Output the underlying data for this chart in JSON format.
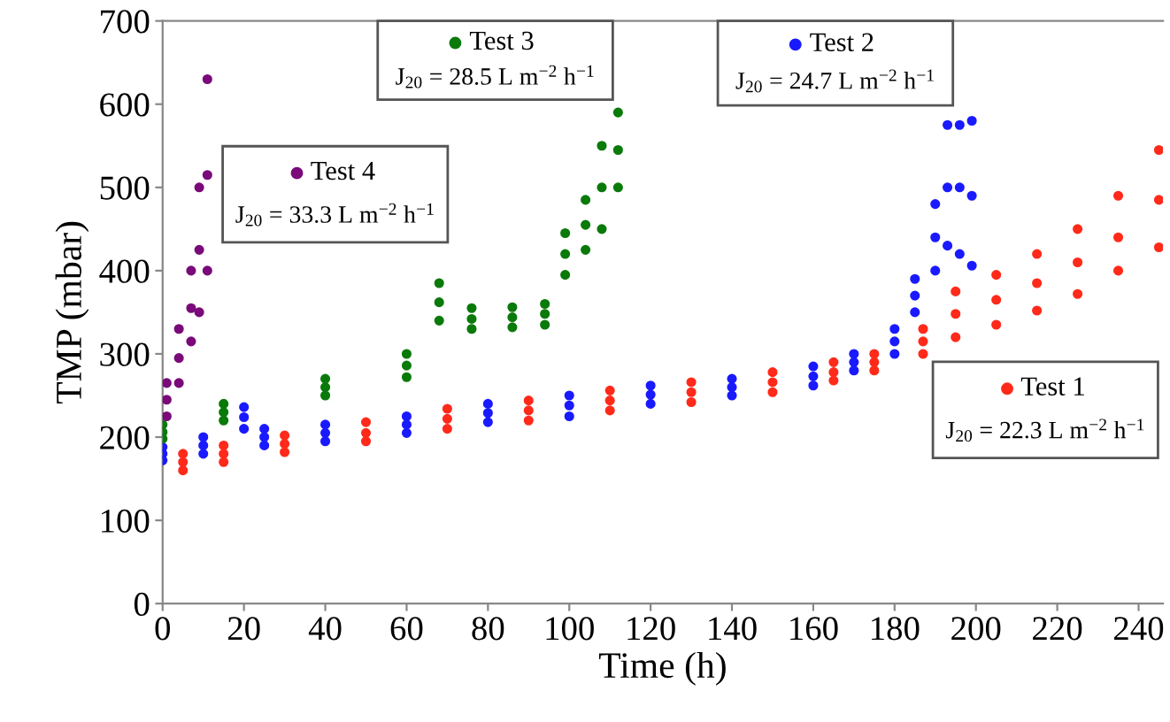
{
  "chart_data": {
    "type": "scatter",
    "xlabel": "Time (h)",
    "ylabel": "TMP (mbar)",
    "xlim": [
      0,
      246
    ],
    "ylim": [
      0,
      700
    ],
    "xticks": [
      0,
      20,
      40,
      60,
      80,
      100,
      120,
      140,
      160,
      180,
      200,
      220,
      240
    ],
    "yticks": [
      0,
      100,
      200,
      300,
      400,
      500,
      600,
      700
    ],
    "grid": false,
    "marker": "circle",
    "legend": "top",
    "series": [
      {
        "name": "Test 1",
        "color": "#ff2a1a",
        "x": [
          5,
          5,
          5,
          15,
          15,
          15,
          30,
          30,
          30,
          50,
          50,
          50,
          70,
          70,
          70,
          90,
          90,
          90,
          110,
          110,
          110,
          130,
          130,
          130,
          150,
          150,
          150,
          165,
          165,
          165,
          175,
          175,
          175,
          187,
          187,
          187,
          195,
          195,
          195,
          205,
          205,
          205,
          215,
          215,
          215,
          225,
          225,
          225,
          235,
          235,
          235,
          245,
          245,
          245
        ],
        "values": [
          160,
          170,
          180,
          170,
          180,
          190,
          182,
          192,
          202,
          195,
          205,
          218,
          210,
          222,
          234,
          220,
          232,
          244,
          232,
          244,
          256,
          242,
          254,
          266,
          254,
          266,
          278,
          268,
          278,
          290,
          280,
          290,
          300,
          300,
          315,
          330,
          320,
          348,
          375,
          335,
          365,
          395,
          352,
          385,
          420,
          372,
          410,
          450,
          400,
          440,
          490,
          428,
          485,
          545
        ]
      },
      {
        "name": "Test 2",
        "color": "#1a1aff",
        "x": [
          0,
          0,
          0,
          10,
          10,
          10,
          20,
          20,
          20,
          25,
          25,
          25,
          40,
          40,
          40,
          60,
          60,
          60,
          80,
          80,
          80,
          100,
          100,
          100,
          120,
          120,
          120,
          140,
          140,
          140,
          160,
          160,
          160,
          170,
          170,
          170,
          180,
          180,
          180,
          185,
          185,
          185,
          190,
          190,
          190,
          193,
          193,
          193,
          196,
          196,
          196,
          199,
          199,
          199
        ],
        "values": [
          172,
          180,
          188,
          180,
          190,
          200,
          210,
          224,
          236,
          190,
          200,
          210,
          195,
          205,
          215,
          205,
          215,
          225,
          218,
          229,
          240,
          225,
          238,
          250,
          240,
          251,
          262,
          250,
          260,
          270,
          262,
          273,
          285,
          280,
          290,
          300,
          300,
          315,
          330,
          350,
          370,
          390,
          400,
          440,
          480,
          430,
          500,
          575,
          420,
          500,
          575,
          406,
          490,
          580
        ]
      },
      {
        "name": "Test 3",
        "color": "#0a7a0a",
        "x": [
          0,
          0,
          0,
          15,
          15,
          15,
          40,
          40,
          40,
          60,
          60,
          60,
          68,
          68,
          68,
          76,
          76,
          76,
          86,
          86,
          86,
          94,
          94,
          94,
          99,
          99,
          99,
          104,
          104,
          104,
          108,
          108,
          108,
          112,
          112,
          112
        ],
        "values": [
          198,
          206,
          215,
          220,
          230,
          240,
          250,
          260,
          270,
          272,
          286,
          300,
          340,
          362,
          385,
          330,
          342,
          355,
          332,
          344,
          356,
          335,
          348,
          360,
          395,
          420,
          445,
          425,
          455,
          485,
          450,
          500,
          550,
          500,
          545,
          590
        ]
      },
      {
        "name": "Test 4",
        "color": "#7a0a7a",
        "x": [
          1,
          1,
          1,
          4,
          4,
          4,
          7,
          7,
          7,
          9,
          9,
          9,
          11,
          11,
          11
        ],
        "values": [
          225,
          245,
          265,
          265,
          295,
          330,
          315,
          355,
          400,
          350,
          425,
          500,
          400,
          515,
          630
        ]
      }
    ],
    "annotations": [
      "J$_{20}$ = 22.3 L m$^{−2}$ h$^{−1}$",
      "J$_{20}$ = 24.7 L m$^{−2}$ h$^{−1}$",
      "J$_{20}$ = 28.5 L m$^{−2}$ h$^{−1}$",
      "J$_{20}$ = 33.3 L m$^{−2}$ h$^{−1}$"
    ]
  }
}
